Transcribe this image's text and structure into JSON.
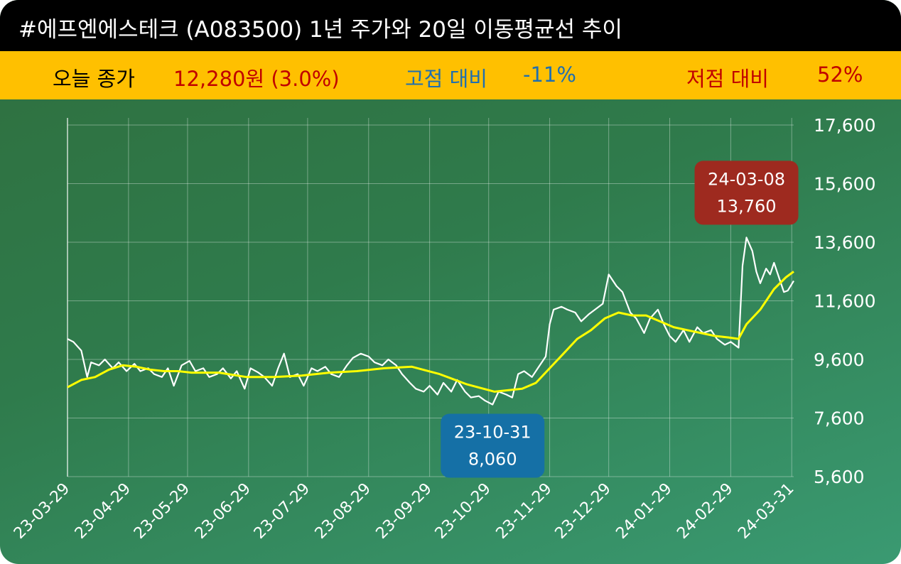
{
  "title": "#에프엔에스테크 (A083500) 1년 주가와 20일 이동평균선 추이",
  "summary": {
    "today_label": "오늘 종가",
    "today_value": "12,280원 (3.0%)",
    "high_label": "고점 대비",
    "high_value": "-11%",
    "low_label": "저점 대비",
    "low_value": "52%"
  },
  "colors": {
    "title_bg": "#000000",
    "info_bg": "#ffc000",
    "today_value": "#c00000",
    "high": "#1f6fb0",
    "low": "#c00000",
    "price_line": "#ffffff",
    "ma_line": "#ffff00",
    "high_callout": "#9e2a1f",
    "low_callout": "#1570a6"
  },
  "chart_data": {
    "type": "line",
    "ylim": [
      5600,
      17600
    ],
    "y_ticks": [
      "5,600",
      "7,600",
      "9,600",
      "11,600",
      "13,600",
      "15,600",
      "17,600"
    ],
    "x_ticks": [
      "23-03-29",
      "23-04-29",
      "23-05-29",
      "23-06-29",
      "23-07-29",
      "23-08-29",
      "23-09-29",
      "23-10-29",
      "23-11-29",
      "23-12-29",
      "24-01-29",
      "24-02-29",
      "24-03-31"
    ],
    "x_range": [
      "2023-03-29",
      "2024-04-01"
    ],
    "series": [
      {
        "kind": "price",
        "points": [
          [
            "2023-03-29",
            10300
          ],
          [
            "2023-04-01",
            10200
          ],
          [
            "2023-04-05",
            9900
          ],
          [
            "2023-04-08",
            9000
          ],
          [
            "2023-04-10",
            9500
          ],
          [
            "2023-04-14",
            9400
          ],
          [
            "2023-04-17",
            9600
          ],
          [
            "2023-04-21",
            9300
          ],
          [
            "2023-04-24",
            9500
          ],
          [
            "2023-04-28",
            9200
          ],
          [
            "2023-05-02",
            9450
          ],
          [
            "2023-05-05",
            9200
          ],
          [
            "2023-05-09",
            9300
          ],
          [
            "2023-05-12",
            9100
          ],
          [
            "2023-05-16",
            9000
          ],
          [
            "2023-05-19",
            9300
          ],
          [
            "2023-05-22",
            8700
          ],
          [
            "2023-05-26",
            9400
          ],
          [
            "2023-05-30",
            9550
          ],
          [
            "2023-06-02",
            9200
          ],
          [
            "2023-06-06",
            9300
          ],
          [
            "2023-06-09",
            9000
          ],
          [
            "2023-06-13",
            9100
          ],
          [
            "2023-06-16",
            9300
          ],
          [
            "2023-06-20",
            8950
          ],
          [
            "2023-06-23",
            9200
          ],
          [
            "2023-06-27",
            8600
          ],
          [
            "2023-06-30",
            9300
          ],
          [
            "2023-07-04",
            9150
          ],
          [
            "2023-07-07",
            9000
          ],
          [
            "2023-07-11",
            8700
          ],
          [
            "2023-07-14",
            9300
          ],
          [
            "2023-07-17",
            9800
          ],
          [
            "2023-07-20",
            9000
          ],
          [
            "2023-07-24",
            9100
          ],
          [
            "2023-07-27",
            8700
          ],
          [
            "2023-07-31",
            9300
          ],
          [
            "2023-08-03",
            9200
          ],
          [
            "2023-08-07",
            9350
          ],
          [
            "2023-08-10",
            9100
          ],
          [
            "2023-08-14",
            9000
          ],
          [
            "2023-08-18",
            9400
          ],
          [
            "2023-08-21",
            9650
          ],
          [
            "2023-08-25",
            9800
          ],
          [
            "2023-08-29",
            9700
          ],
          [
            "2023-09-01",
            9500
          ],
          [
            "2023-09-05",
            9400
          ],
          [
            "2023-09-08",
            9600
          ],
          [
            "2023-09-12",
            9400
          ],
          [
            "2023-09-15",
            9100
          ],
          [
            "2023-09-19",
            8800
          ],
          [
            "2023-09-22",
            8600
          ],
          [
            "2023-09-26",
            8500
          ],
          [
            "2023-09-29",
            8700
          ],
          [
            "2023-10-03",
            8400
          ],
          [
            "2023-10-06",
            8800
          ],
          [
            "2023-10-10",
            8500
          ],
          [
            "2023-10-13",
            8900
          ],
          [
            "2023-10-17",
            8500
          ],
          [
            "2023-10-20",
            8300
          ],
          [
            "2023-10-24",
            8350
          ],
          [
            "2023-10-27",
            8200
          ],
          [
            "2023-10-31",
            8060
          ],
          [
            "2023-11-03",
            8500
          ],
          [
            "2023-11-07",
            8400
          ],
          [
            "2023-11-10",
            8300
          ],
          [
            "2023-11-13",
            9100
          ],
          [
            "2023-11-16",
            9200
          ],
          [
            "2023-11-20",
            9000
          ],
          [
            "2023-11-23",
            9300
          ],
          [
            "2023-11-27",
            9700
          ],
          [
            "2023-11-29",
            10800
          ],
          [
            "2023-12-01",
            11300
          ],
          [
            "2023-12-05",
            11400
          ],
          [
            "2023-12-08",
            11300
          ],
          [
            "2023-12-12",
            11200
          ],
          [
            "2023-12-15",
            10900
          ],
          [
            "2023-12-19",
            11150
          ],
          [
            "2023-12-22",
            11300
          ],
          [
            "2023-12-26",
            11500
          ],
          [
            "2023-12-29",
            12500
          ],
          [
            "2024-01-02",
            12100
          ],
          [
            "2024-01-05",
            11900
          ],
          [
            "2024-01-09",
            11200
          ],
          [
            "2024-01-12",
            11000
          ],
          [
            "2024-01-16",
            10500
          ],
          [
            "2024-01-19",
            11000
          ],
          [
            "2024-01-23",
            11300
          ],
          [
            "2024-01-26",
            10800
          ],
          [
            "2024-01-29",
            10400
          ],
          [
            "2024-02-01",
            10200
          ],
          [
            "2024-02-05",
            10600
          ],
          [
            "2024-02-08",
            10200
          ],
          [
            "2024-02-12",
            10700
          ],
          [
            "2024-02-15",
            10500
          ],
          [
            "2024-02-19",
            10600
          ],
          [
            "2024-02-22",
            10300
          ],
          [
            "2024-02-26",
            10100
          ],
          [
            "2024-02-29",
            10200
          ],
          [
            "2024-03-04",
            10000
          ],
          [
            "2024-03-06",
            12800
          ],
          [
            "2024-03-08",
            13760
          ],
          [
            "2024-03-11",
            13300
          ],
          [
            "2024-03-13",
            12600
          ],
          [
            "2024-03-15",
            12200
          ],
          [
            "2024-03-18",
            12700
          ],
          [
            "2024-03-20",
            12500
          ],
          [
            "2024-03-22",
            12900
          ],
          [
            "2024-03-25",
            12300
          ],
          [
            "2024-03-27",
            11900
          ],
          [
            "2024-03-29",
            11950
          ],
          [
            "2024-04-01",
            12280
          ]
        ]
      },
      {
        "kind": "ma20",
        "points": [
          [
            "2023-03-29",
            8650
          ],
          [
            "2023-04-05",
            8900
          ],
          [
            "2023-04-12",
            9000
          ],
          [
            "2023-04-19",
            9250
          ],
          [
            "2023-04-26",
            9400
          ],
          [
            "2023-05-03",
            9350
          ],
          [
            "2023-05-10",
            9250
          ],
          [
            "2023-05-17",
            9200
          ],
          [
            "2023-05-24",
            9200
          ],
          [
            "2023-05-31",
            9150
          ],
          [
            "2023-06-14",
            9150
          ],
          [
            "2023-06-28",
            9000
          ],
          [
            "2023-07-12",
            9000
          ],
          [
            "2023-07-26",
            9050
          ],
          [
            "2023-08-09",
            9150
          ],
          [
            "2023-08-23",
            9200
          ],
          [
            "2023-09-06",
            9300
          ],
          [
            "2023-09-20",
            9350
          ],
          [
            "2023-10-04",
            9100
          ],
          [
            "2023-10-18",
            8750
          ],
          [
            "2023-11-01",
            8500
          ],
          [
            "2023-11-15",
            8600
          ],
          [
            "2023-11-22",
            8800
          ],
          [
            "2023-11-29",
            9300
          ],
          [
            "2023-12-06",
            9800
          ],
          [
            "2023-12-13",
            10300
          ],
          [
            "2023-12-20",
            10600
          ],
          [
            "2023-12-27",
            11000
          ],
          [
            "2024-01-03",
            11200
          ],
          [
            "2024-01-10",
            11100
          ],
          [
            "2024-01-17",
            11100
          ],
          [
            "2024-01-24",
            10900
          ],
          [
            "2024-01-31",
            10700
          ],
          [
            "2024-02-07",
            10600
          ],
          [
            "2024-02-14",
            10500
          ],
          [
            "2024-02-21",
            10400
          ],
          [
            "2024-02-28",
            10350
          ],
          [
            "2024-03-04",
            10300
          ],
          [
            "2024-03-08",
            10800
          ],
          [
            "2024-03-15",
            11300
          ],
          [
            "2024-03-22",
            12000
          ],
          [
            "2024-03-28",
            12400
          ],
          [
            "2024-04-01",
            12600
          ]
        ]
      }
    ],
    "annotations": [
      {
        "date": "2024-03-08",
        "value": 13760,
        "label_date": "24-03-08",
        "label_value": "13,760",
        "kind": "high"
      },
      {
        "date": "2023-10-31",
        "value": 8060,
        "label_date": "23-10-31",
        "label_value": "8,060",
        "kind": "low"
      }
    ]
  }
}
